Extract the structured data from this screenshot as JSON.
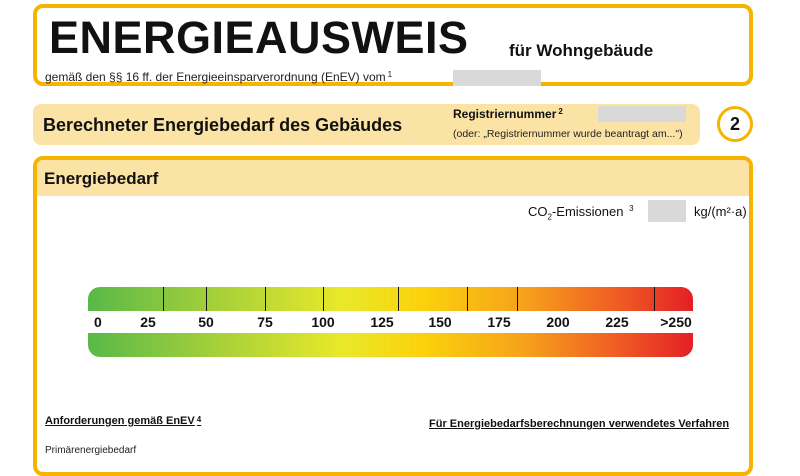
{
  "header": {
    "title": "ENERGIEAUSWEIS",
    "subtitle": "für Wohngebäude",
    "legal_note": "gemäß den §§ 16 ff. der Energieeinsparverordnung (EnEV) vom",
    "legal_note_sup": "1"
  },
  "section": {
    "title": "Berechneter Energiebedarf des Gebäudes",
    "reg_label": "Registriernummer",
    "reg_sup": "2",
    "reg_note": "(oder: „Registriernummer wurde beantragt am...\")",
    "page_number": "2"
  },
  "energy": {
    "title": "Energiebedarf",
    "co2_label_prefix": "CO",
    "co2_label_sub": "2",
    "co2_label_suffix": "-Emissionen",
    "co2_sup": "3",
    "co2_unit": "kg/(m²·a)",
    "scale_labels": [
      "0",
      "25",
      "50",
      "75",
      "100",
      "125",
      "150",
      "175",
      "200",
      "225",
      ">250"
    ],
    "requirements_title": "Anforderungen gemäß EnEV",
    "requirements_sup": "4",
    "method_title": "Für Energiebedarfsberechnungen verwendetes Verfahren",
    "primary_label": "Primärenergiebedarf"
  }
}
